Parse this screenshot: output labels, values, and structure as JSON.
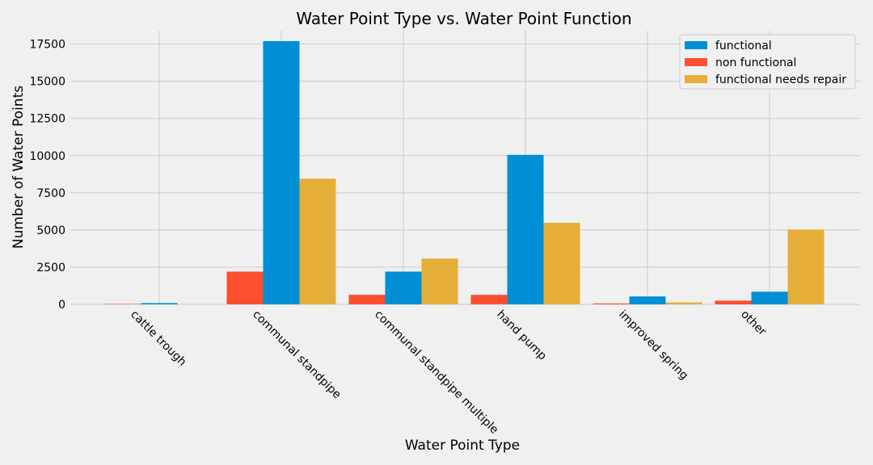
{
  "chart_data": {
    "type": "bar",
    "title": "Water Point Type vs. Water Point Function",
    "xlabel": "Water Point Type",
    "ylabel": "Number of Water Points",
    "categories": [
      "cattle trough",
      "communal standpipe",
      "communal standpipe multiple",
      "hand pump",
      "improved spring",
      "other"
    ],
    "series": [
      {
        "name": "non functional",
        "color": "#fc4f30",
        "values": [
          30,
          2200,
          640,
          640,
          60,
          250
        ]
      },
      {
        "name": "functional",
        "color": "#008fd5",
        "values": [
          85,
          17700,
          2200,
          10050,
          530,
          850
        ]
      },
      {
        "name": "functional needs repair",
        "color": "#e5ae38",
        "values": [
          0,
          8450,
          3080,
          5480,
          130,
          5030
        ]
      }
    ],
    "legend_order": [
      "functional",
      "non functional",
      "functional needs repair"
    ],
    "legend_position": "top-right",
    "ylim": [
      0,
      18400
    ],
    "yticks": [
      0,
      2500,
      5000,
      7500,
      10000,
      12500,
      15000,
      17500
    ],
    "grid": true
  }
}
